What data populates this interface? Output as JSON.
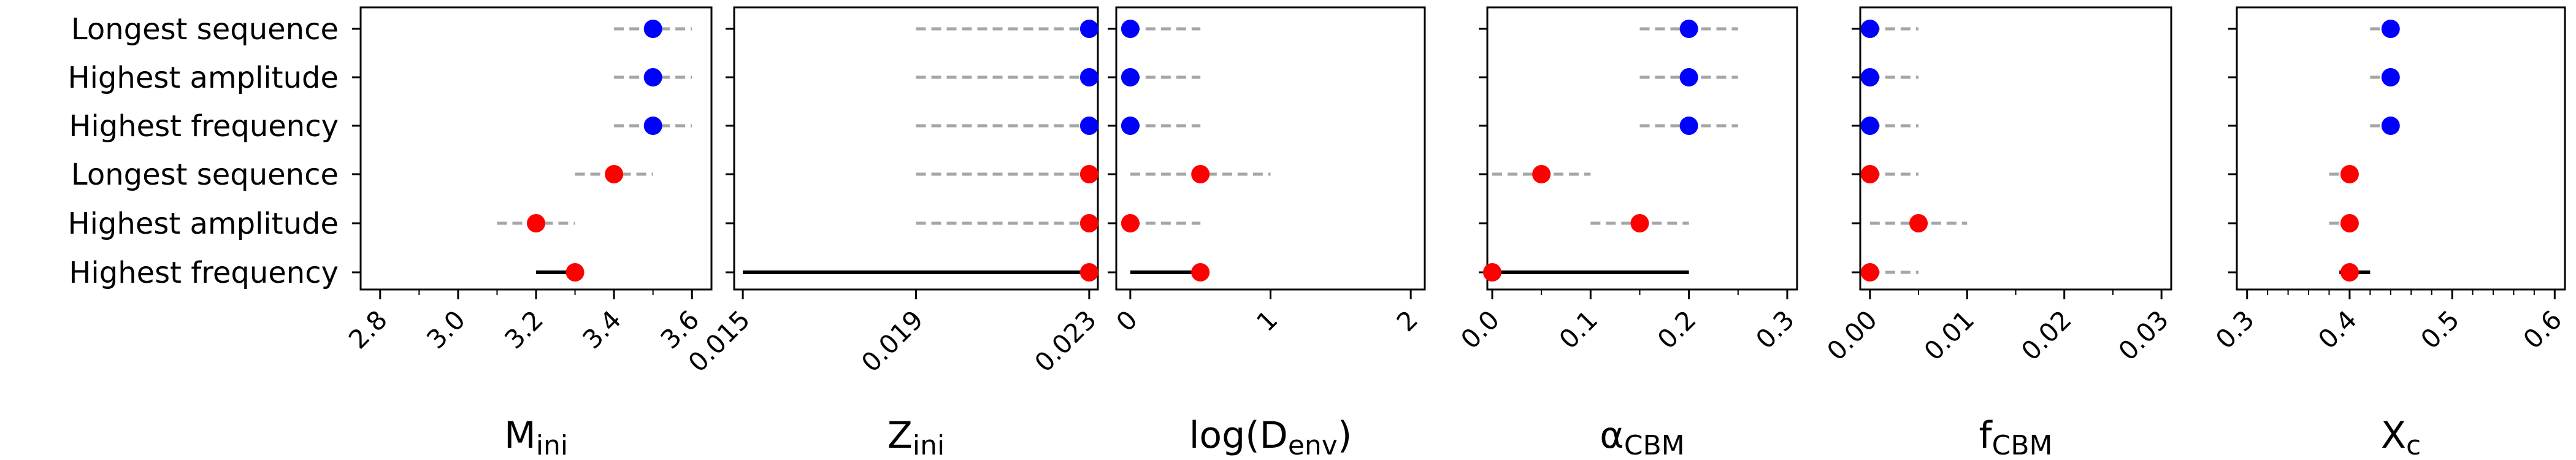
{
  "chart_data": {
    "type": "scatter",
    "rows": [
      "Longest sequence",
      "Highest amplitude",
      "Highest frequency",
      "Longest sequence",
      "Highest amplitude",
      "Highest frequency"
    ],
    "row_colors": [
      "#0000ff",
      "#0000ff",
      "#0000ff",
      "#ff0000",
      "#ff0000",
      "#ff0000"
    ],
    "colors": {
      "dashed_range": "#a6a6a6",
      "solid_range": "#000000",
      "frame": "#000000"
    },
    "grid": false,
    "legend": "none",
    "panels": [
      {
        "xlabel": "M",
        "xlabel_sub": "ini",
        "xlim": [
          2.75,
          3.65
        ],
        "ticks": [
          2.8,
          3.0,
          3.2,
          3.4,
          3.6
        ],
        "tick_labels": [
          "2.8",
          "3.0",
          "3.2",
          "3.4",
          "3.6"
        ],
        "minor_ticks": [
          2.9,
          3.1,
          3.3,
          3.5
        ],
        "values": [
          3.5,
          3.5,
          3.5,
          3.4,
          3.2,
          3.3
        ],
        "ranges": [
          [
            3.4,
            3.6
          ],
          [
            3.4,
            3.6
          ],
          [
            3.4,
            3.6
          ],
          [
            3.3,
            3.5
          ],
          [
            3.1,
            3.3
          ],
          [
            3.2,
            3.3
          ]
        ],
        "range_styles": [
          "dashed",
          "dashed",
          "dashed",
          "dashed",
          "dashed",
          "solid"
        ]
      },
      {
        "xlabel": "Z",
        "xlabel_sub": "ini",
        "xlim": [
          0.0148,
          0.0232
        ],
        "ticks": [
          0.015,
          0.019,
          0.023
        ],
        "tick_labels": [
          "0.015",
          "0.019",
          "0.023"
        ],
        "minor_ticks": [],
        "values": [
          0.023,
          0.023,
          0.023,
          0.023,
          0.023,
          0.023
        ],
        "ranges": [
          [
            0.019,
            0.023
          ],
          [
            0.019,
            0.023
          ],
          [
            0.019,
            0.023
          ],
          [
            0.019,
            0.023
          ],
          [
            0.019,
            0.023
          ],
          [
            0.015,
            0.023
          ]
        ],
        "range_styles": [
          "dashed",
          "dashed",
          "dashed",
          "dashed",
          "dashed",
          "solid"
        ]
      },
      {
        "xlabel": "log(D",
        "xlabel_sub": "env",
        "xlabel_suffix": ")",
        "xlim": [
          -0.1,
          2.1
        ],
        "ticks": [
          0,
          1,
          2
        ],
        "tick_labels": [
          "0",
          "1",
          "2"
        ],
        "minor_ticks": [],
        "values": [
          0,
          0,
          0,
          0.5,
          0,
          0.5
        ],
        "ranges": [
          [
            0,
            0.5
          ],
          [
            0,
            0.5
          ],
          [
            0,
            0.5
          ],
          [
            0,
            1.0
          ],
          [
            0,
            0.5
          ],
          [
            0,
            0.5
          ]
        ],
        "range_styles": [
          "dashed",
          "dashed",
          "dashed",
          "dashed",
          "dashed",
          "solid"
        ]
      },
      {
        "xlabel": "α",
        "xlabel_sub": "CBM",
        "xlim": [
          -0.005,
          0.31
        ],
        "ticks": [
          0.0,
          0.1,
          0.2,
          0.3
        ],
        "tick_labels": [
          "0.0",
          "0.1",
          "0.2",
          "0.3"
        ],
        "minor_ticks": [
          0.05,
          0.15,
          0.25
        ],
        "values": [
          0.2,
          0.2,
          0.2,
          0.05,
          0.15,
          0.0
        ],
        "ranges": [
          [
            0.15,
            0.25
          ],
          [
            0.15,
            0.25
          ],
          [
            0.15,
            0.25
          ],
          [
            0.0,
            0.1
          ],
          [
            0.1,
            0.2
          ],
          [
            0.0,
            0.2
          ]
        ],
        "range_styles": [
          "dashed",
          "dashed",
          "dashed",
          "dashed",
          "dashed",
          "solid"
        ]
      },
      {
        "xlabel": "f",
        "xlabel_sub": "CBM",
        "xlim": [
          -0.001,
          0.031
        ],
        "ticks": [
          0.0,
          0.01,
          0.02,
          0.03
        ],
        "tick_labels": [
          "0.00",
          "0.01",
          "0.02",
          "0.03"
        ],
        "minor_ticks": [
          0.005,
          0.015,
          0.025
        ],
        "values": [
          0.0,
          0.0,
          0.0,
          0.0,
          0.005,
          0.0
        ],
        "ranges": [
          [
            0.0,
            0.005
          ],
          [
            0.0,
            0.005
          ],
          [
            0.0,
            0.005
          ],
          [
            0.0,
            0.005
          ],
          [
            0.0,
            0.01
          ],
          [
            0.0,
            0.005
          ]
        ],
        "range_styles": [
          "dashed",
          "dashed",
          "dashed",
          "dashed",
          "dashed",
          "dashed"
        ]
      },
      {
        "xlabel": "X",
        "xlabel_sub": "c",
        "xlim": [
          0.29,
          0.61
        ],
        "ticks": [
          0.3,
          0.4,
          0.5,
          0.6
        ],
        "tick_labels": [
          "0.3",
          "0.4",
          "0.5",
          "0.6"
        ],
        "minor_ticks": [
          0.32,
          0.34,
          0.36,
          0.38,
          0.42,
          0.44,
          0.46,
          0.48,
          0.52,
          0.54,
          0.56,
          0.58
        ],
        "values": [
          0.44,
          0.44,
          0.44,
          0.4,
          0.4,
          0.4
        ],
        "ranges": [
          [
            0.42,
            0.45
          ],
          [
            0.42,
            0.45
          ],
          [
            0.42,
            0.45
          ],
          [
            0.38,
            0.41
          ],
          [
            0.38,
            0.41
          ],
          [
            0.39,
            0.42
          ]
        ],
        "range_styles": [
          "dashed",
          "dashed",
          "dashed",
          "dashed",
          "dashed",
          "solid"
        ]
      }
    ]
  }
}
